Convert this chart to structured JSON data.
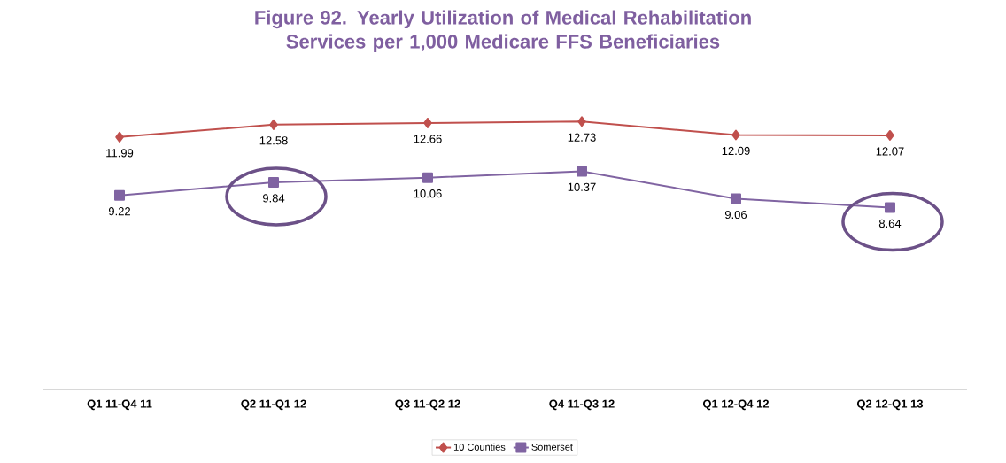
{
  "chart_data": {
    "type": "line",
    "title": "Figure 92. Yearly Utilization of Medical Rehabilitation Services per 1,000 Medicare FFS Beneficiaries",
    "categories": [
      "Q1 11-Q4 11",
      "Q2 11-Q1 12",
      "Q3 11-Q2 12",
      "Q4 11-Q3 12",
      "Q1 12-Q4 12",
      "Q2 12-Q1 13"
    ],
    "series": [
      {
        "name": "10 Counties",
        "color": "#c0504d",
        "marker": "diamond",
        "values": [
          11.99,
          12.58,
          12.66,
          12.73,
          12.09,
          12.07
        ]
      },
      {
        "name": "Somerset",
        "color": "#8064a2",
        "marker": "square",
        "values": [
          9.22,
          9.84,
          10.06,
          10.37,
          9.06,
          8.64
        ]
      }
    ],
    "tick_labels": "x",
    "data_labels": true,
    "legend": "bottom",
    "grid": false
  }
}
